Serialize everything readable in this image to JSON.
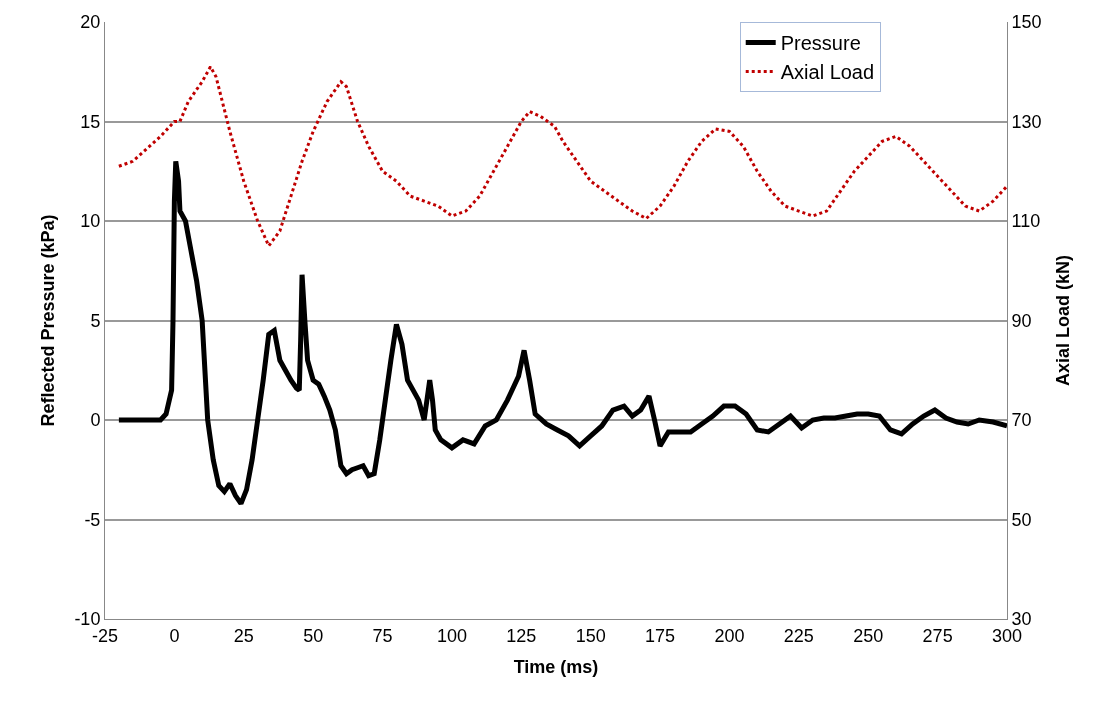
{
  "chart_data": {
    "type": "line",
    "xlabel": "Time (ms)",
    "ylabel": "Reflected Pressure (kPa)",
    "y2label": "Axial Load (kN)",
    "xlim": [
      -25,
      300
    ],
    "xticks": [
      -25,
      0,
      25,
      50,
      75,
      100,
      125,
      150,
      175,
      200,
      225,
      250,
      275,
      300
    ],
    "ylim": [
      -10,
      20
    ],
    "yticks": [
      -10,
      -5,
      0,
      5,
      10,
      15,
      20
    ],
    "y2lim": [
      30,
      150
    ],
    "y2ticks": [
      30,
      50,
      70,
      90,
      110,
      130,
      150
    ],
    "grid": "y",
    "legend": "top right",
    "marker": "none",
    "series": [
      {
        "name": "Pressure",
        "color": "#000000",
        "line_style": "solid",
        "x": [
          -20,
          -5,
          -3,
          -1,
          -0.5,
          0,
          0.5,
          1.5,
          2,
          4,
          6,
          8,
          10,
          12,
          14,
          16,
          18,
          20,
          22,
          24,
          26,
          28,
          30,
          32,
          34,
          36,
          38,
          40,
          42,
          44,
          45,
          45.5,
          46,
          47,
          48,
          50,
          52,
          54,
          56,
          58,
          60,
          62,
          64,
          66,
          68,
          70,
          72,
          74,
          76,
          78,
          80,
          82,
          84,
          86,
          88,
          90,
          92,
          93,
          94,
          96,
          100,
          104,
          108,
          112,
          116,
          120,
          124,
          126,
          128,
          130,
          134,
          138,
          142,
          146,
          150,
          154,
          158,
          162,
          165,
          168,
          171,
          173,
          175,
          178,
          182,
          186,
          190,
          194,
          198,
          202,
          206,
          210,
          214,
          218,
          222,
          226,
          230,
          234,
          238,
          242,
          246,
          250,
          254,
          258,
          262,
          266,
          270,
          274,
          278,
          282,
          286,
          290,
          295,
          300
        ],
        "values": [
          0,
          0,
          0.3,
          1.5,
          5,
          11,
          13,
          12,
          10.5,
          10,
          8.5,
          7,
          5,
          0,
          -2,
          -3.3,
          -3.6,
          -3.2,
          -3.8,
          -4.2,
          -3.5,
          -2,
          0,
          2,
          4.3,
          4.5,
          3,
          2.5,
          2,
          1.6,
          1.5,
          4,
          7.3,
          5,
          3,
          2,
          1.8,
          1.2,
          0.5,
          -0.5,
          -2.3,
          -2.7,
          -2.5,
          -2.4,
          -2.3,
          -2.8,
          -2.7,
          -1,
          1,
          3,
          4.8,
          3.8,
          2,
          1.5,
          1,
          0,
          2,
          1,
          -0.5,
          -1,
          -1.4,
          -1,
          -1.2,
          -0.3,
          0,
          1,
          2.2,
          3.5,
          2,
          0.3,
          -0.2,
          -0.5,
          -0.8,
          -1.3,
          -0.8,
          -0.3,
          0.5,
          0.7,
          0.2,
          0.5,
          1.2,
          0,
          -1.3,
          -0.6,
          -0.6,
          -0.6,
          -0.2,
          0.2,
          0.7,
          0.7,
          0.3,
          -0.5,
          -0.6,
          -0.2,
          0.2,
          -0.4,
          0,
          0.1,
          0.1,
          0.2,
          0.3,
          0.3,
          0.2,
          -0.5,
          -0.7,
          -0.2,
          0.2,
          0.5,
          0.1,
          -0.1,
          -0.2,
          0,
          -0.1,
          -0.3
        ]
      },
      {
        "name": "Axial Load",
        "color": "#c00000",
        "line_style": "dotted",
        "axis": "y2",
        "x": [
          -20,
          -15,
          -10,
          -5,
          0,
          2,
          5,
          10,
          13,
          15,
          20,
          25,
          30,
          34,
          38,
          42,
          46,
          50,
          55,
          60,
          62,
          66,
          70,
          75,
          80,
          85,
          90,
          95,
          100,
          105,
          110,
          115,
          120,
          125,
          128,
          132,
          137,
          140,
          145,
          150,
          155,
          160,
          165,
          170,
          175,
          180,
          185,
          190,
          195,
          200,
          205,
          210,
          215,
          220,
          225,
          230,
          235,
          240,
          245,
          250,
          255,
          260,
          265,
          270,
          275,
          280,
          285,
          290,
          295,
          300
        ],
        "values": [
          121,
          122,
          124.5,
          127,
          130,
          130,
          134,
          138,
          141,
          139,
          128,
          118,
          110,
          105,
          108,
          115,
          122,
          128,
          134,
          138,
          137,
          130,
          125,
          120,
          118,
          115,
          114,
          113,
          111,
          112,
          115,
          120,
          125,
          130,
          132,
          131,
          129,
          126,
          122,
          118,
          116,
          114,
          112,
          110.5,
          113,
          117,
          122,
          126,
          128.5,
          128,
          125,
          120,
          116,
          113,
          112,
          111,
          112,
          116,
          120,
          123,
          126,
          127,
          125,
          122,
          119,
          116,
          113,
          112,
          114,
          117
        ]
      }
    ]
  }
}
